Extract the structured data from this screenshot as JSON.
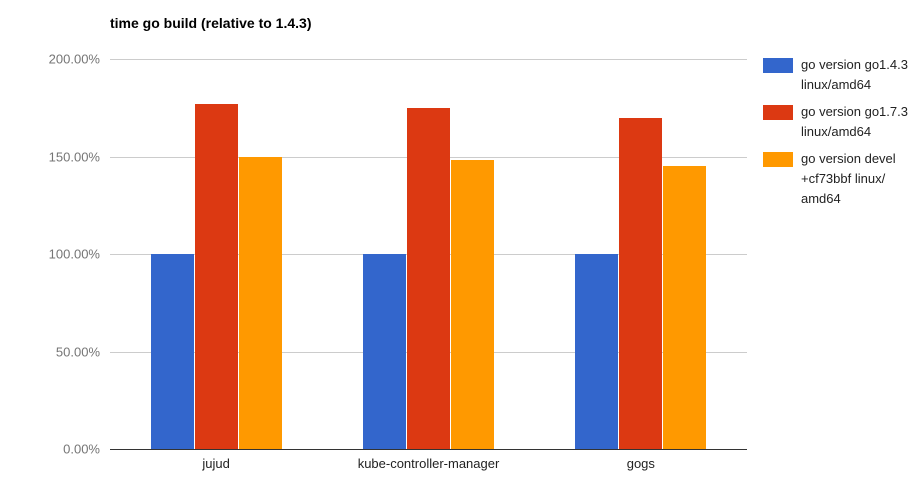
{
  "chart_data": {
    "type": "bar",
    "title": "time go build (relative to 1.4.3)",
    "categories": [
      "jujud",
      "kube-controller-manager",
      "gogs"
    ],
    "series": [
      {
        "name": "go version go1.4.3 linux/amd64",
        "color": "#3366cc",
        "values": [
          100,
          100,
          100
        ]
      },
      {
        "name": "go version go1.7.3 linux/amd64",
        "color": "#dc3912",
        "values": [
          177,
          175,
          170
        ]
      },
      {
        "name": "go version devel +cf73bbf linux/amd64",
        "color": "#ff9900",
        "values": [
          150,
          148,
          145
        ]
      }
    ],
    "xlabel": "",
    "ylabel": "",
    "ylim": [
      0,
      200
    ],
    "y_ticks": [
      "0.00%",
      "50.00%",
      "100.00%",
      "150.00%",
      "200.00%"
    ],
    "grid": true,
    "legend_position": "right",
    "background": "#ffffff",
    "gridline_color": "#cccccc",
    "baseline_color": "#333333"
  },
  "legend": {
    "items": [
      {
        "lines": [
          "go version go1.4.3",
          "linux/amd64"
        ]
      },
      {
        "lines": [
          "go version go1.7.3",
          "linux/amd64"
        ]
      },
      {
        "lines": [
          "go version devel",
          "+cf73bbf linux/",
          "amd64"
        ]
      }
    ]
  }
}
